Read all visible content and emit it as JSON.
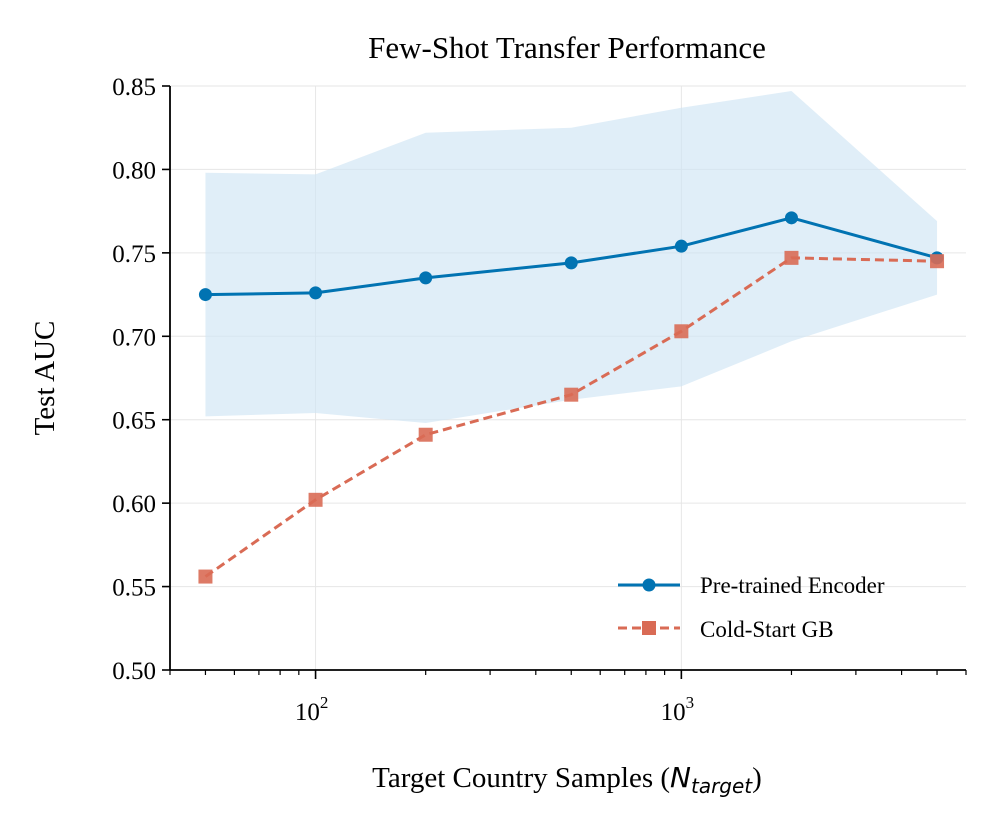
{
  "chart_data": {
    "type": "line",
    "title": "Few-Shot Transfer Performance",
    "xlabel_prefix": "Target Country Samples (",
    "xlabel_symbol": "N",
    "xlabel_subscript": "target",
    "xlabel_suffix": ")",
    "ylabel": "Test AUC",
    "xscale": "log",
    "xlim": [
      40,
      6000
    ],
    "ylim": [
      0.5,
      0.85
    ],
    "x": [
      50,
      100,
      200,
      500,
      1000,
      2000,
      5000
    ],
    "yticks": [
      "0.50",
      "0.55",
      "0.60",
      "0.65",
      "0.70",
      "0.75",
      "0.80",
      "0.85"
    ],
    "xtick_major": [
      {
        "base": "10",
        "exp": "2"
      },
      {
        "base": "10",
        "exp": "3"
      }
    ],
    "grid": true,
    "legend_position": "bottom-right",
    "series": [
      {
        "name": "Pre-trained Encoder",
        "color": "#0173b2",
        "marker": "circle",
        "linestyle": "solid",
        "values": [
          0.725,
          0.726,
          0.735,
          0.744,
          0.754,
          0.771,
          0.747
        ],
        "band_upper": [
          0.798,
          0.797,
          0.822,
          0.825,
          0.837,
          0.847,
          0.769
        ],
        "band_lower": [
          0.652,
          0.654,
          0.648,
          0.662,
          0.67,
          0.697,
          0.725
        ],
        "band_color": "#cfe5f4"
      },
      {
        "name": "Cold-Start GB",
        "color": "#d96b55",
        "marker": "square",
        "linestyle": "dashed",
        "values": [
          0.556,
          0.602,
          0.641,
          0.665,
          0.703,
          0.747,
          0.745
        ]
      }
    ]
  }
}
